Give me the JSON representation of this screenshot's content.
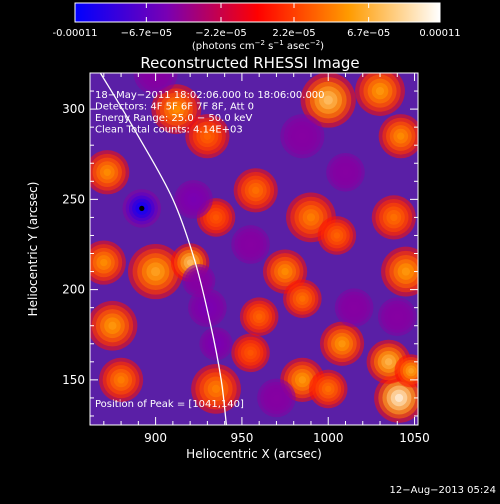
{
  "colorbar": {
    "ticks": [
      {
        "value": -0.00011,
        "label": "-0.00011"
      },
      {
        "value": -6.7e-05,
        "label": "−6.7e−05"
      },
      {
        "value": -2.2e-05,
        "label": "−2.2e−05"
      },
      {
        "value": 2.2e-05,
        "label": "2.2e−05"
      },
      {
        "value": 6.7e-05,
        "label": "6.7e−05"
      },
      {
        "value": 0.00011,
        "label": "0.00011"
      }
    ],
    "units_main": "(photons cm",
    "units_sup1": "−2",
    "units_mid": " s",
    "units_sup2": "−1",
    "units_mid2": " asec",
    "units_sup3": "−2",
    "units_end": ")",
    "range": [
      -0.00011,
      0.00011
    ]
  },
  "chart_data": {
    "type": "heatmap",
    "title": "Reconstructed RHESSI Image",
    "xlabel": "Heliocentric X (arcsec)",
    "ylabel": "Heliocentric Y (arcsec)",
    "xlim": [
      862,
      1052
    ],
    "ylim": [
      125,
      320
    ],
    "xticks": [
      900,
      950,
      1000,
      1050
    ],
    "yticks": [
      150,
      200,
      250,
      300
    ],
    "colorscale": [
      "#0000ff",
      "#7800b4",
      "#ff0000",
      "#ff9b00",
      "#ffffff"
    ],
    "annotations": [
      "18−May−2011 18:02:06.000 to 18:06:00.000",
      "Detectors: 4F 5F 6F 7F 8F, Att 0",
      "Energy Range: 25.0 − 50.0 keV",
      "Clean     Total counts: 4.14E+03"
    ],
    "peak_label": "Position of Peak = [1041,140]",
    "peak": [
      1041,
      140
    ],
    "blobs": [
      {
        "x": 1041,
        "y": 140,
        "v": 1.0,
        "r": 9
      },
      {
        "x": 1035,
        "y": 160,
        "v": 0.7,
        "r": 8
      },
      {
        "x": 1048,
        "y": 155,
        "v": 0.6,
        "r": 6
      },
      {
        "x": 935,
        "y": 145,
        "v": 0.45,
        "r": 9
      },
      {
        "x": 985,
        "y": 150,
        "v": 0.55,
        "r": 8
      },
      {
        "x": 1008,
        "y": 170,
        "v": 0.55,
        "r": 8
      },
      {
        "x": 1000,
        "y": 145,
        "v": 0.4,
        "r": 7
      },
      {
        "x": 875,
        "y": 180,
        "v": 0.55,
        "r": 9
      },
      {
        "x": 880,
        "y": 150,
        "v": 0.45,
        "r": 8
      },
      {
        "x": 900,
        "y": 210,
        "v": 0.6,
        "r": 10
      },
      {
        "x": 920,
        "y": 215,
        "v": 0.75,
        "r": 7
      },
      {
        "x": 870,
        "y": 215,
        "v": 0.5,
        "r": 8
      },
      {
        "x": 872,
        "y": 265,
        "v": 0.5,
        "r": 8
      },
      {
        "x": 912,
        "y": 300,
        "v": 0.5,
        "r": 9
      },
      {
        "x": 930,
        "y": 285,
        "v": 0.35,
        "r": 8
      },
      {
        "x": 1000,
        "y": 305,
        "v": 0.75,
        "r": 10
      },
      {
        "x": 1030,
        "y": 310,
        "v": 0.55,
        "r": 9
      },
      {
        "x": 1042,
        "y": 285,
        "v": 0.5,
        "r": 8
      },
      {
        "x": 1045,
        "y": 210,
        "v": 0.55,
        "r": 9
      },
      {
        "x": 1038,
        "y": 240,
        "v": 0.4,
        "r": 8
      },
      {
        "x": 958,
        "y": 255,
        "v": 0.4,
        "r": 8
      },
      {
        "x": 990,
        "y": 240,
        "v": 0.45,
        "r": 9
      },
      {
        "x": 975,
        "y": 210,
        "v": 0.5,
        "r": 8
      },
      {
        "x": 1005,
        "y": 230,
        "v": 0.35,
        "r": 7
      },
      {
        "x": 960,
        "y": 185,
        "v": 0.35,
        "r": 7
      },
      {
        "x": 985,
        "y": 195,
        "v": 0.4,
        "r": 7
      },
      {
        "x": 935,
        "y": 240,
        "v": 0.3,
        "r": 7
      },
      {
        "x": 955,
        "y": 165,
        "v": 0.3,
        "r": 7
      },
      {
        "x": 892,
        "y": 245,
        "v": -1.0,
        "r": 7
      },
      {
        "x": 922,
        "y": 250,
        "v": -0.5,
        "r": 7
      },
      {
        "x": 930,
        "y": 190,
        "v": -0.5,
        "r": 7
      },
      {
        "x": 935,
        "y": 170,
        "v": -0.5,
        "r": 6
      },
      {
        "x": 925,
        "y": 205,
        "v": -0.35,
        "r": 6
      },
      {
        "x": 900,
        "y": 320,
        "v": -0.35,
        "r": 8
      },
      {
        "x": 985,
        "y": 285,
        "v": -0.35,
        "r": 8
      },
      {
        "x": 970,
        "y": 140,
        "v": -0.25,
        "r": 7
      },
      {
        "x": 1015,
        "y": 190,
        "v": -0.3,
        "r": 7
      },
      {
        "x": 1040,
        "y": 185,
        "v": -0.25,
        "r": 7
      },
      {
        "x": 955,
        "y": 225,
        "v": -0.25,
        "r": 7
      },
      {
        "x": 1010,
        "y": 265,
        "v": -0.25,
        "r": 7
      }
    ],
    "limb_curve": [
      [
        868,
        320
      ],
      [
        890,
        285
      ],
      [
        910,
        250
      ],
      [
        923,
        215
      ],
      [
        932,
        180
      ],
      [
        938,
        150
      ],
      [
        941,
        125
      ]
    ]
  },
  "timestamp": "12−Aug−2013 05:24"
}
